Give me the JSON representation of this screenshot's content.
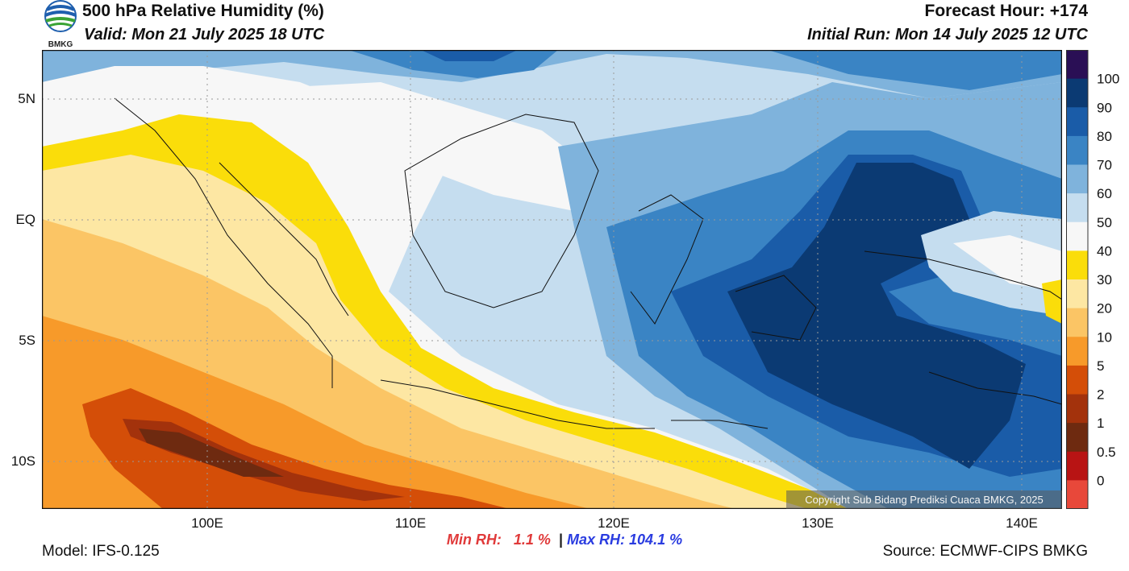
{
  "header": {
    "title": "500 hPa Relative Humidity (%)",
    "valid": "Valid: Mon 21 July 2025 18 UTC",
    "forecast_hour": "Forecast Hour: +174",
    "initial_run": "Initial Run: Mon 14 July 2025 12 UTC"
  },
  "logo": {
    "text": "BMKG",
    "icon": "bmkg-logo-icon",
    "blue": "#1f5fae",
    "green": "#3aa335"
  },
  "map": {
    "lat_labels": [
      "5N",
      "EQ",
      "5S",
      "10S"
    ],
    "lon_labels": [
      "100E",
      "110E",
      "120E",
      "130E",
      "140E"
    ],
    "copyright": "Copyright Sub Bidang Prediksi Cuaca BMKG, 2025"
  },
  "colorbar": {
    "labels": [
      "100",
      "90",
      "80",
      "70",
      "60",
      "50",
      "40",
      "30",
      "20",
      "10",
      "5",
      "2",
      "1",
      "0.5",
      "0"
    ],
    "colors": [
      "#2a0f55",
      "#0b3a73",
      "#1a5ca8",
      "#3a84c4",
      "#7fb3dc",
      "#c5ddef",
      "#f7f7f7",
      "#fadd0a",
      "#fde7a3",
      "#fbc565",
      "#f79a2a",
      "#d44e08",
      "#a3320c",
      "#6e2a10",
      "#b81414",
      "#e8483a"
    ]
  },
  "stats": {
    "min_label": "Min RH:",
    "min_value": "1.1 %",
    "separator": "|",
    "max_label": "Max RH:",
    "max_value": "104.1 %"
  },
  "footer": {
    "model": "Model: IFS-0.125",
    "source": "Source: ECMWF-CIPS BMKG"
  }
}
